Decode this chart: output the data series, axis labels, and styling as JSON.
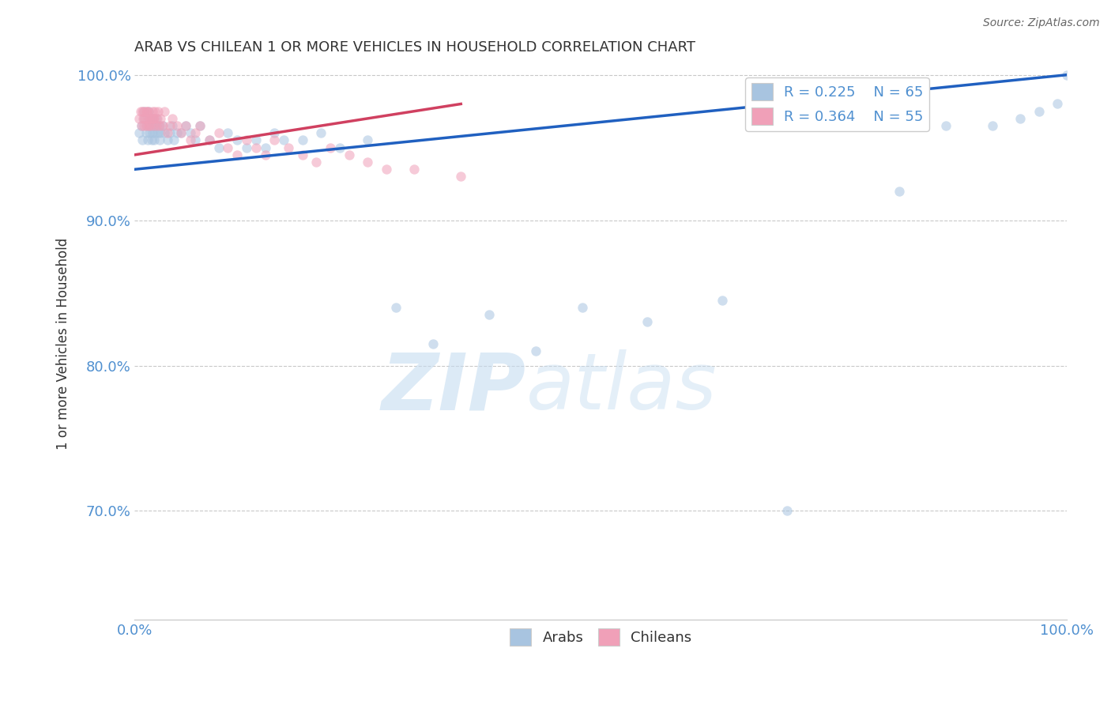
{
  "title": "ARAB VS CHILEAN 1 OR MORE VEHICLES IN HOUSEHOLD CORRELATION CHART",
  "source": "Source: ZipAtlas.com",
  "ylabel": "1 or more Vehicles in Household",
  "xlim": [
    0.0,
    1.0
  ],
  "ylim": [
    0.625,
    1.005
  ],
  "yticks": [
    0.7,
    0.8,
    0.9,
    1.0
  ],
  "ytick_labels": [
    "70.0%",
    "80.0%",
    "90.0%",
    "100.0%"
  ],
  "xtick_labels": [
    "0.0%",
    "100.0%"
  ],
  "legend_r_arab": "R = 0.225",
  "legend_n_arab": "N = 65",
  "legend_r_chilean": "R = 0.364",
  "legend_n_chilean": "N = 55",
  "arab_color": "#A8C4E0",
  "chilean_color": "#F0A0B8",
  "arab_line_color": "#2060C0",
  "chilean_line_color": "#D04060",
  "watermark_zip": "ZIP",
  "watermark_atlas": "atlas",
  "background_color": "#ffffff",
  "grid_color": "#bbbbbb",
  "title_color": "#333333",
  "axis_color": "#5090D0",
  "tick_color": "#5090D0",
  "marker_size": 80,
  "alpha": 0.55,
  "arab_x": [
    0.005,
    0.007,
    0.008,
    0.01,
    0.01,
    0.012,
    0.013,
    0.014,
    0.015,
    0.015,
    0.016,
    0.017,
    0.018,
    0.018,
    0.019,
    0.02,
    0.02,
    0.021,
    0.022,
    0.022,
    0.023,
    0.025,
    0.026,
    0.027,
    0.028,
    0.03,
    0.032,
    0.035,
    0.038,
    0.04,
    0.042,
    0.045,
    0.05,
    0.055,
    0.06,
    0.065,
    0.07,
    0.08,
    0.09,
    0.1,
    0.11,
    0.12,
    0.13,
    0.14,
    0.15,
    0.16,
    0.18,
    0.2,
    0.22,
    0.25,
    0.28,
    0.32,
    0.38,
    0.43,
    0.48,
    0.55,
    0.63,
    0.7,
    0.82,
    0.87,
    0.92,
    0.95,
    0.97,
    0.99,
    1.0
  ],
  "arab_y": [
    0.96,
    0.965,
    0.955,
    0.97,
    0.975,
    0.96,
    0.965,
    0.955,
    0.97,
    0.975,
    0.96,
    0.965,
    0.97,
    0.955,
    0.96,
    0.965,
    0.97,
    0.955,
    0.96,
    0.965,
    0.97,
    0.96,
    0.965,
    0.955,
    0.96,
    0.965,
    0.96,
    0.955,
    0.96,
    0.965,
    0.955,
    0.96,
    0.96,
    0.965,
    0.96,
    0.955,
    0.965,
    0.955,
    0.95,
    0.96,
    0.955,
    0.95,
    0.955,
    0.95,
    0.96,
    0.955,
    0.955,
    0.96,
    0.95,
    0.955,
    0.84,
    0.815,
    0.835,
    0.81,
    0.84,
    0.83,
    0.845,
    0.7,
    0.92,
    0.965,
    0.965,
    0.97,
    0.975,
    0.98,
    1.0
  ],
  "chilean_x": [
    0.005,
    0.006,
    0.007,
    0.008,
    0.009,
    0.01,
    0.01,
    0.011,
    0.012,
    0.012,
    0.013,
    0.014,
    0.015,
    0.015,
    0.016,
    0.017,
    0.018,
    0.019,
    0.02,
    0.02,
    0.021,
    0.022,
    0.023,
    0.024,
    0.025,
    0.027,
    0.028,
    0.03,
    0.032,
    0.035,
    0.038,
    0.04,
    0.045,
    0.05,
    0.055,
    0.06,
    0.065,
    0.07,
    0.08,
    0.09,
    0.1,
    0.11,
    0.12,
    0.13,
    0.14,
    0.15,
    0.165,
    0.18,
    0.195,
    0.21,
    0.23,
    0.25,
    0.27,
    0.3,
    0.35
  ],
  "chilean_y": [
    0.97,
    0.975,
    0.965,
    0.975,
    0.97,
    0.965,
    0.975,
    0.97,
    0.975,
    0.965,
    0.975,
    0.97,
    0.965,
    0.975,
    0.97,
    0.965,
    0.97,
    0.975,
    0.97,
    0.965,
    0.97,
    0.975,
    0.965,
    0.97,
    0.975,
    0.965,
    0.97,
    0.965,
    0.975,
    0.96,
    0.965,
    0.97,
    0.965,
    0.96,
    0.965,
    0.955,
    0.96,
    0.965,
    0.955,
    0.96,
    0.95,
    0.945,
    0.955,
    0.95,
    0.945,
    0.955,
    0.95,
    0.945,
    0.94,
    0.95,
    0.945,
    0.94,
    0.935,
    0.935,
    0.93
  ],
  "arab_line_x0": 0.0,
  "arab_line_x1": 1.0,
  "arab_line_y0": 0.935,
  "arab_line_y1": 1.0,
  "chilean_line_x0": 0.0,
  "chilean_line_x1": 0.35,
  "chilean_line_y0": 0.945,
  "chilean_line_y1": 0.98
}
